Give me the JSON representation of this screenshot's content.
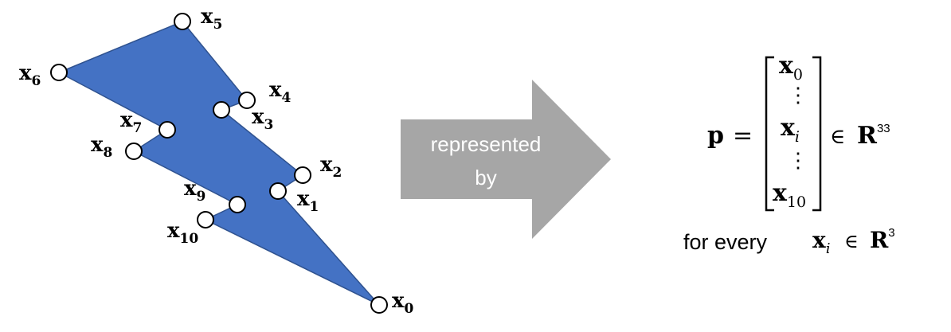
{
  "colors": {
    "polygon_fill": "#4472c4",
    "polygon_stroke": "#2f528f",
    "vertex_fill": "#ffffff",
    "arrow_fill": "#a6a6a6",
    "text": "#000000"
  },
  "vertices": [
    {
      "label_base": "x",
      "label_sub": "0"
    },
    {
      "label_base": "x",
      "label_sub": "1"
    },
    {
      "label_base": "x",
      "label_sub": "2"
    },
    {
      "label_base": "x",
      "label_sub": "3"
    },
    {
      "label_base": "x",
      "label_sub": "4"
    },
    {
      "label_base": "x",
      "label_sub": "5"
    },
    {
      "label_base": "x",
      "label_sub": "6"
    },
    {
      "label_base": "x",
      "label_sub": "7"
    },
    {
      "label_base": "x",
      "label_sub": "8"
    },
    {
      "label_base": "x",
      "label_sub": "9"
    },
    {
      "label_base": "x",
      "label_sub": "10"
    }
  ],
  "arrow": {
    "line1": "represented",
    "line2": "by"
  },
  "equation": {
    "lhs": "p",
    "equals": "=",
    "vec_top_base": "x",
    "vec_top_sub": "0",
    "vec_mid_base": "x",
    "vec_mid_sub": "i",
    "vec_bottom_base": "x",
    "vec_bottom_sub": "10",
    "ellipsis": "⋮",
    "member": "∈",
    "space": "R",
    "dim": "33"
  },
  "caption": {
    "prefix": "for every",
    "var_base": "x",
    "var_sub": "i",
    "member": "∈",
    "space": "R",
    "dim": "3"
  }
}
